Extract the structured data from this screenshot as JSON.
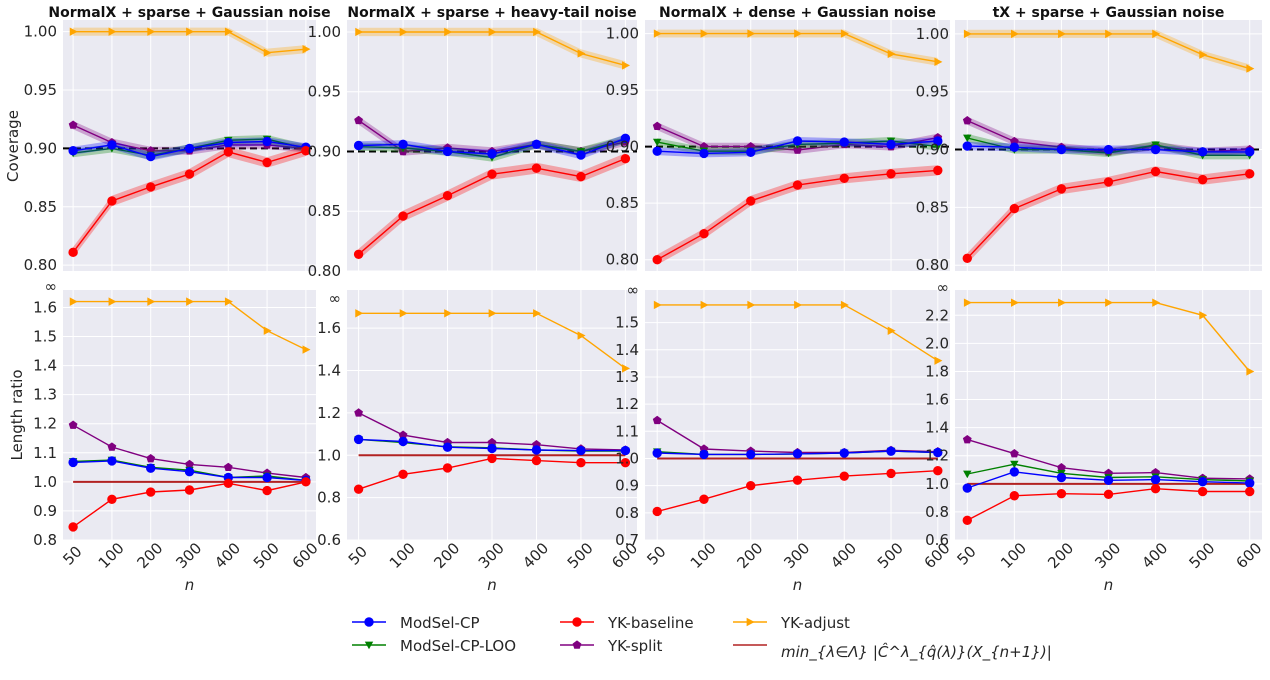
{
  "chart_data": {
    "type": "line",
    "x_categories": [
      "50",
      "100",
      "200",
      "300",
      "400",
      "500",
      "600"
    ],
    "xlabel": "n",
    "infinity_label": "∞",
    "row_labels": {
      "coverage": "Coverage",
      "length": "Length ratio"
    },
    "colors": {
      "ModSel-CP": "#0000ff",
      "ModSel-CP-LOO": "#008000",
      "YK-baseline": "#ff0000",
      "YK-split": "#800080",
      "YK-adjust": "#ffa500",
      "min-line": "#b22222",
      "target": "#000000"
    },
    "legend": [
      {
        "key": "ModSel-CP",
        "label": "ModSel-CP",
        "marker": "circle"
      },
      {
        "key": "ModSel-CP-LOO",
        "label": "ModSel-CP-LOO",
        "marker": "triangle-down"
      },
      {
        "key": "YK-baseline",
        "label": "YK-baseline",
        "marker": "circle"
      },
      {
        "key": "YK-split",
        "label": "YK-split",
        "marker": "pentagon"
      },
      {
        "key": "YK-adjust",
        "label": "YK-adjust",
        "marker": "triangle-right"
      },
      {
        "key": "min-line",
        "label": "min_{λ∈Λ} |Ĉ^λ_{q̂(λ)}(X_{n+1})|",
        "marker": "line"
      }
    ],
    "panels": [
      {
        "title": "NormalX + sparse + Gaussian noise",
        "coverage": {
          "ylim": [
            0.795,
            1.01
          ],
          "yticks": [
            "0.80",
            "0.85",
            "0.90",
            "0.95",
            "1.00"
          ],
          "target": 0.9,
          "series": [
            {
              "key": "YK-adjust",
              "values": [
                1.0,
                1.0,
                1.0,
                1.0,
                1.0,
                0.982,
                0.985
              ]
            },
            {
              "key": "YK-split",
              "values": [
                0.92,
                0.905,
                0.898,
                0.898,
                0.903,
                0.903,
                0.9
              ]
            },
            {
              "key": "ModSel-CP-LOO",
              "values": [
                0.896,
                0.9,
                0.894,
                0.9,
                0.907,
                0.908,
                0.9
              ]
            },
            {
              "key": "ModSel-CP",
              "values": [
                0.898,
                0.903,
                0.893,
                0.9,
                0.905,
                0.906,
                0.901
              ]
            },
            {
              "key": "YK-baseline",
              "values": [
                0.811,
                0.855,
                0.867,
                0.878,
                0.897,
                0.888,
                0.898
              ]
            }
          ]
        },
        "length": {
          "ylim": [
            0.8,
            1.66
          ],
          "yticks": [
            "0.8",
            "0.9",
            "1.0",
            "1.1",
            "1.2",
            "1.3",
            "1.4",
            "1.5",
            "1.6"
          ],
          "inf_value": 1.62,
          "min_line": 1.0,
          "series": [
            {
              "key": "YK-adjust",
              "values": [
                1.62,
                1.62,
                1.62,
                1.62,
                1.62,
                1.52,
                1.455
              ]
            },
            {
              "key": "YK-split",
              "values": [
                1.195,
                1.12,
                1.08,
                1.06,
                1.05,
                1.03,
                1.015
              ]
            },
            {
              "key": "ModSel-CP-LOO",
              "values": [
                1.07,
                1.075,
                1.05,
                1.04,
                1.015,
                1.02,
                1.005
              ]
            },
            {
              "key": "ModSel-CP",
              "values": [
                1.067,
                1.072,
                1.047,
                1.035,
                1.015,
                1.015,
                1.005
              ]
            },
            {
              "key": "YK-baseline",
              "values": [
                0.845,
                0.94,
                0.965,
                0.972,
                0.995,
                0.97,
                1.0
              ]
            }
          ]
        }
      },
      {
        "title": "NormalX + sparse + heavy-tail noise",
        "coverage": {
          "ylim": [
            0.8,
            1.01
          ],
          "yticks": [
            "0.80",
            "0.85",
            "0.90",
            "0.95",
            "1.00"
          ],
          "target": 0.9,
          "series": [
            {
              "key": "YK-adjust",
              "values": [
                1.0,
                1.0,
                1.0,
                1.0,
                1.0,
                0.982,
                0.972
              ]
            },
            {
              "key": "YK-split",
              "values": [
                0.926,
                0.9,
                0.903,
                0.9,
                0.906,
                0.9,
                0.908
              ]
            },
            {
              "key": "ModSel-CP-LOO",
              "values": [
                0.904,
                0.903,
                0.9,
                0.895,
                0.906,
                0.9,
                0.91
              ]
            },
            {
              "key": "ModSel-CP",
              "values": [
                0.905,
                0.906,
                0.9,
                0.898,
                0.906,
                0.897,
                0.911
              ]
            },
            {
              "key": "YK-baseline",
              "values": [
                0.814,
                0.846,
                0.863,
                0.881,
                0.886,
                0.879,
                0.894
              ]
            }
          ]
        },
        "length": {
          "ylim": [
            0.6,
            1.78
          ],
          "yticks": [
            "0.6",
            "0.8",
            "1.0",
            "1.2",
            "1.4",
            "1.6"
          ],
          "inf_value": 1.67,
          "min_line": 1.0,
          "series": [
            {
              "key": "YK-adjust",
              "values": [
                1.67,
                1.67,
                1.67,
                1.67,
                1.67,
                1.565,
                1.41
              ]
            },
            {
              "key": "YK-split",
              "values": [
                1.2,
                1.095,
                1.06,
                1.06,
                1.05,
                1.03,
                1.025
              ]
            },
            {
              "key": "ModSel-CP-LOO",
              "values": [
                1.075,
                1.06,
                1.04,
                1.035,
                1.025,
                1.02,
                1.02
              ]
            },
            {
              "key": "ModSel-CP",
              "values": [
                1.075,
                1.065,
                1.038,
                1.032,
                1.025,
                1.022,
                1.022
              ]
            },
            {
              "key": "YK-baseline",
              "values": [
                0.84,
                0.91,
                0.94,
                0.985,
                0.975,
                0.965,
                0.965
              ]
            }
          ]
        }
      },
      {
        "title": "NormalX + dense + Gaussian noise",
        "coverage": {
          "ylim": [
            0.79,
            1.012
          ],
          "yticks": [
            "0.80",
            "0.85",
            "0.90",
            "0.95",
            "1.00"
          ],
          "target": 0.9,
          "series": [
            {
              "key": "YK-adjust",
              "values": [
                1.0,
                1.0,
                1.0,
                1.0,
                1.0,
                0.982,
                0.975
              ]
            },
            {
              "key": "YK-split",
              "values": [
                0.918,
                0.9,
                0.9,
                0.897,
                0.902,
                0.9,
                0.908
              ]
            },
            {
              "key": "ModSel-CP-LOO",
              "values": [
                0.904,
                0.896,
                0.896,
                0.902,
                0.903,
                0.905,
                0.9
              ]
            },
            {
              "key": "ModSel-CP",
              "values": [
                0.896,
                0.894,
                0.895,
                0.905,
                0.904,
                0.902,
                0.905
              ]
            },
            {
              "key": "YK-baseline",
              "values": [
                0.8,
                0.823,
                0.852,
                0.866,
                0.872,
                0.876,
                0.879
              ]
            }
          ]
        },
        "length": {
          "ylim": [
            0.7,
            1.62
          ],
          "yticks": [
            "0.7",
            "0.8",
            "0.9",
            "1.0",
            "1.1",
            "1.2",
            "1.3",
            "1.4",
            "1.5"
          ],
          "inf_value": 1.565,
          "min_line": 1.0,
          "series": [
            {
              "key": "YK-adjust",
              "values": [
                1.565,
                1.565,
                1.565,
                1.565,
                1.565,
                1.47,
                1.36
              ]
            },
            {
              "key": "YK-split",
              "values": [
                1.14,
                1.035,
                1.027,
                1.022,
                1.022,
                1.03,
                1.025
              ]
            },
            {
              "key": "ModSel-CP-LOO",
              "values": [
                1.025,
                1.015,
                1.015,
                1.017,
                1.02,
                1.027,
                1.022
              ]
            },
            {
              "key": "ModSel-CP",
              "values": [
                1.02,
                1.015,
                1.015,
                1.017,
                1.02,
                1.027,
                1.022
              ]
            },
            {
              "key": "YK-baseline",
              "values": [
                0.805,
                0.85,
                0.9,
                0.92,
                0.935,
                0.945,
                0.955
              ]
            }
          ]
        }
      },
      {
        "title": "tX + sparse + Gaussian noise",
        "coverage": {
          "ylim": [
            0.795,
            1.012
          ],
          "yticks": [
            "0.80",
            "0.85",
            "0.90",
            "0.95",
            "1.00"
          ],
          "target": 0.9,
          "series": [
            {
              "key": "YK-adjust",
              "values": [
                1.0,
                1.0,
                1.0,
                1.0,
                1.0,
                0.982,
                0.97
              ]
            },
            {
              "key": "YK-split",
              "values": [
                0.925,
                0.907,
                0.902,
                0.898,
                0.903,
                0.898,
                0.9
              ]
            },
            {
              "key": "ModSel-CP-LOO",
              "values": [
                0.91,
                0.9,
                0.9,
                0.897,
                0.904,
                0.895,
                0.895
              ]
            },
            {
              "key": "ModSel-CP",
              "values": [
                0.903,
                0.902,
                0.9,
                0.9,
                0.9,
                0.898,
                0.898
              ]
            },
            {
              "key": "YK-baseline",
              "values": [
                0.806,
                0.849,
                0.866,
                0.872,
                0.881,
                0.874,
                0.879
              ]
            }
          ]
        },
        "length": {
          "ylim": [
            0.6,
            2.38
          ],
          "yticks": [
            "0.6",
            "0.8",
            "1.0",
            "1.2",
            "1.4",
            "1.6",
            "1.8",
            "2.0",
            "2.2"
          ],
          "inf_value": 2.29,
          "min_line": 1.0,
          "series": [
            {
              "key": "YK-adjust",
              "values": [
                2.29,
                2.29,
                2.29,
                2.29,
                2.29,
                2.2,
                1.8
              ]
            },
            {
              "key": "YK-split",
              "values": [
                1.315,
                1.215,
                1.115,
                1.075,
                1.08,
                1.04,
                1.035
              ]
            },
            {
              "key": "ModSel-CP-LOO",
              "values": [
                1.07,
                1.14,
                1.075,
                1.045,
                1.05,
                1.03,
                1.02
              ]
            },
            {
              "key": "ModSel-CP",
              "values": [
                0.97,
                1.085,
                1.045,
                1.025,
                1.03,
                1.015,
                1.005
              ]
            },
            {
              "key": "YK-baseline",
              "values": [
                0.74,
                0.915,
                0.93,
                0.925,
                0.965,
                0.945,
                0.945
              ]
            }
          ]
        }
      }
    ]
  }
}
